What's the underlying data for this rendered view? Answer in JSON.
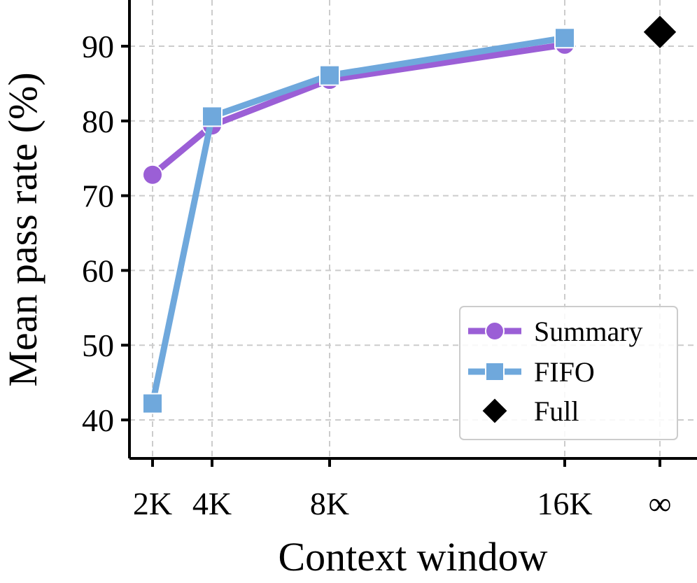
{
  "chart_data": {
    "type": "line",
    "x_categories": [
      "2K",
      "4K",
      "8K",
      "16K",
      "∞"
    ],
    "x_values": [
      2,
      4,
      8,
      16,
      20
    ],
    "xlabel": "Context window",
    "ylabel": "Mean pass rate (%)",
    "ylim": [
      35,
      96
    ],
    "yticks": [
      40,
      50,
      60,
      70,
      80,
      90
    ],
    "grid": true,
    "legend_position": "bottom-right",
    "series": [
      {
        "name": "Summary",
        "marker": "circle",
        "color": "#9b5fd6",
        "x": [
          "2K",
          "4K",
          "8K",
          "16K"
        ],
        "values": [
          72.8,
          79.4,
          85.5,
          90.2
        ]
      },
      {
        "name": "FIFO",
        "marker": "square",
        "color": "#6fa8dc",
        "x": [
          "2K",
          "4K",
          "8K",
          "16K"
        ],
        "values": [
          42.2,
          80.6,
          86.1,
          91.1
        ]
      },
      {
        "name": "Full",
        "marker": "diamond",
        "color": "#000000",
        "x": [
          "∞"
        ],
        "values": [
          91.9
        ]
      }
    ]
  }
}
